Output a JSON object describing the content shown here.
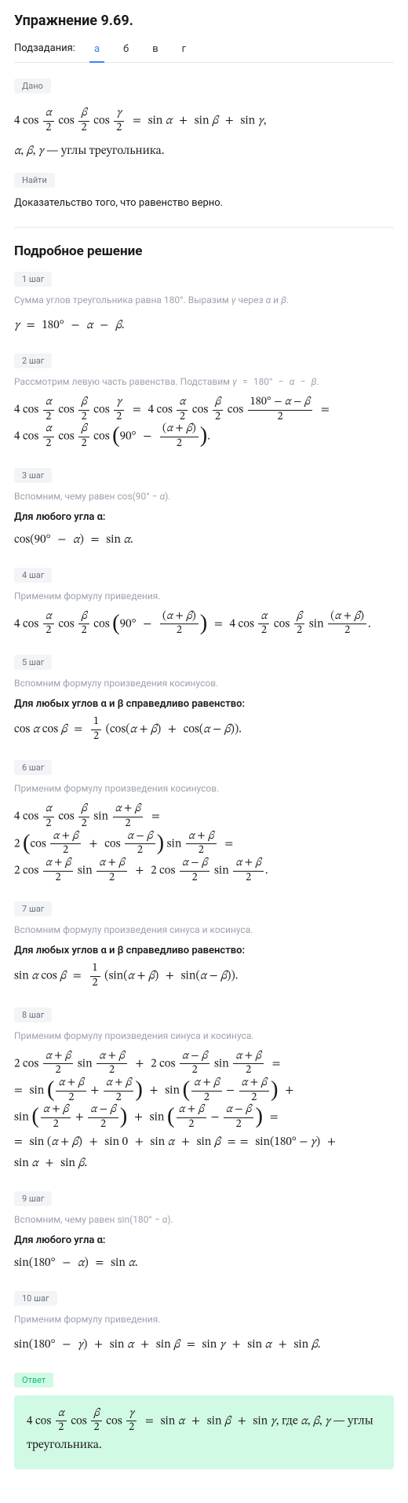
{
  "title": "Упражнение 9.69.",
  "subtasks": {
    "label": "Подзадания:",
    "tabs": [
      "а",
      "б",
      "в",
      "г"
    ],
    "active": 0
  },
  "given": {
    "tag": "Дано",
    "formula_html": "4 cos <span class='fr'><span class='n it'>α</span><span class='d'>2</span></span> cos <span class='fr'><span class='n it'>β</span><span class='d'>2</span></span> cos <span class='fr'><span class='n it'>γ</span><span class='d'>2</span></span> <span class='sp'></span>=<span class='sp'></span> sin <span class='it'>α</span> <span class='sp'></span>+<span class='sp'></span> sin <span class='it'>β</span> <span class='sp'></span>+<span class='sp'></span> sin <span class='it'>γ</span>,",
    "note_html": "<span class='it'>α</span>, <span class='it'>β</span>, <span class='it'>γ</span> — углы треугольника."
  },
  "find": {
    "tag": "Найти",
    "text": "Доказательство того, что равенство верно."
  },
  "solution_title": "Подробное решение",
  "steps": [
    {
      "tag": "1 шаг",
      "gray_html": "Сумма углов треугольника равна 180°. Выразим <span class='it'>γ</span> через <span class='it'>α</span> и <span class='it'>β</span>.",
      "math_html": "<span class='it'>γ</span> <span class='sp'></span>=<span class='sp'></span> 180° <span class='sp'></span>−<span class='sp'></span> <span class='it'>α</span> <span class='sp'></span>−<span class='sp'></span> <span class='it'>β</span>."
    },
    {
      "tag": "2 шаг",
      "gray_html": "Рассмотрим левую часть равенства. Подставим <span class='it'>γ</span> <span class='sp'></span>=<span class='sp'></span> 180° <span class='sp'></span>−<span class='sp'></span> <span class='it'>α</span> <span class='sp'></span>−<span class='sp'></span> <span class='it'>β</span>.",
      "math_html": "4 cos <span class='fr'><span class='n it'>α</span><span class='d'>2</span></span> cos <span class='fr'><span class='n it'>β</span><span class='d'>2</span></span> cos <span class='fr'><span class='n it'>γ</span><span class='d'>2</span></span> <span class='sp'></span>=<span class='sp'></span> 4 cos <span class='fr'><span class='n it'>α</span><span class='d'>2</span></span> cos <span class='fr'><span class='n it'>β</span><span class='d'>2</span></span> cos <span class='fr'><span class='n'>180° − <span class='it'>α</span> − <span class='it'>β</span></span><span class='d'>2</span></span> <span class='sp'></span>=<br>4 cos <span class='fr'><span class='n it'>α</span><span class='d'>2</span></span> cos <span class='fr'><span class='n it'>β</span><span class='d'>2</span></span> cos <span class='paren-l'>(</span>90° <span class='sp'></span>−<span class='sp'></span> <span class='fr'><span class='n'>(<span class='it'>α</span> + <span class='it'>β</span>)</span><span class='d'>2</span></span><span class='paren-r'>)</span>."
    },
    {
      "tag": "3 шаг",
      "gray_html": "Вспомним, чему равен cos(90° − <span class='it'>α</span>).",
      "bold": "Для любого угла α:",
      "math_html": "cos(90° <span class='sp'></span>−<span class='sp'></span> <span class='it'>α</span>) <span class='sp'></span>=<span class='sp'></span> sin <span class='it'>α</span>."
    },
    {
      "tag": "4 шаг",
      "gray_html": "Применим формулу приведения.",
      "math_html": "4 cos <span class='fr'><span class='n it'>α</span><span class='d'>2</span></span> cos <span class='fr'><span class='n it'>β</span><span class='d'>2</span></span> cos <span class='paren-l'>(</span>90° <span class='sp'></span>−<span class='sp'></span> <span class='fr'><span class='n'>(<span class='it'>α</span> + <span class='it'>β</span>)</span><span class='d'>2</span></span><span class='paren-r'>)</span> <span class='sp'></span>=<span class='sp'></span> 4 cos <span class='fr'><span class='n it'>α</span><span class='d'>2</span></span> cos <span class='fr'><span class='n it'>β</span><span class='d'>2</span></span> sin <span class='fr'><span class='n'>(<span class='it'>α</span> + <span class='it'>β</span>)</span><span class='d'>2</span></span>."
    },
    {
      "tag": "5 шаг",
      "gray_html": "Вспомним формулу произведения косинусов.",
      "bold": "Для любых углов α и β справедливо равенство:",
      "math_html": "cos <span class='it'>α</span> cos <span class='it'>β</span> <span class='sp'></span>=<span class='sp'></span> <span class='fr'><span class='n'>1</span><span class='d'>2</span></span> (cos(<span class='it'>α</span> + <span class='it'>β</span>) <span class='sp'></span>+<span class='sp'></span> cos(<span class='it'>α</span> − <span class='it'>β</span>))."
    },
    {
      "tag": "6 шаг",
      "gray_html": "Применим формулу произведения косинусов.",
      "math_html": "4 cos <span class='fr'><span class='n it'>α</span><span class='d'>2</span></span> cos <span class='fr'><span class='n it'>β</span><span class='d'>2</span></span> sin <span class='fr'><span class='n'><span class='it'>α</span> + <span class='it'>β</span></span><span class='d'>2</span></span> <span class='sp'></span>=<br>2 <span class='paren-l'>(</span>cos <span class='fr'><span class='n'><span class='it'>α</span> + <span class='it'>β</span></span><span class='d'>2</span></span> <span class='sp'></span>+<span class='sp'></span> cos <span class='fr'><span class='n'><span class='it'>α</span> − <span class='it'>β</span></span><span class='d'>2</span></span><span class='paren-r'>)</span> sin <span class='fr'><span class='n'><span class='it'>α</span> + <span class='it'>β</span></span><span class='d'>2</span></span> <span class='sp'></span>=<br>2 cos <span class='fr'><span class='n'><span class='it'>α</span> + <span class='it'>β</span></span><span class='d'>2</span></span> sin <span class='fr'><span class='n'><span class='it'>α</span> + <span class='it'>β</span></span><span class='d'>2</span></span> <span class='sp'></span>+<span class='sp'></span> 2 cos <span class='fr'><span class='n'><span class='it'>α</span> − <span class='it'>β</span></span><span class='d'>2</span></span> sin <span class='fr'><span class='n'><span class='it'>α</span> + <span class='it'>β</span></span><span class='d'>2</span></span>."
    },
    {
      "tag": "7 шаг",
      "gray_html": "Вспомним формулу произведения синуса и косинуса.",
      "bold": "Для любых углов α и β справедливо равенство:",
      "math_html": "sin <span class='it'>α</span> cos <span class='it'>β</span> <span class='sp'></span>=<span class='sp'></span> <span class='fr'><span class='n'>1</span><span class='d'>2</span></span> (sin(<span class='it'>α</span> + <span class='it'>β</span>) <span class='sp'></span>+<span class='sp'></span> sin(<span class='it'>α</span> − <span class='it'>β</span>))."
    },
    {
      "tag": "8 шаг",
      "gray_html": "Применим формулу произведения синуса и косинуса.",
      "math_html": "2 cos <span class='fr'><span class='n'><span class='it'>α</span> + <span class='it'>β</span></span><span class='d'>2</span></span> sin <span class='fr'><span class='n'><span class='it'>α</span> + <span class='it'>β</span></span><span class='d'>2</span></span> <span class='sp'></span>+<span class='sp'></span> 2 cos <span class='fr'><span class='n'><span class='it'>α</span> − <span class='it'>β</span></span><span class='d'>2</span></span> sin <span class='fr'><span class='n'><span class='it'>α</span> + <span class='it'>β</span></span><span class='d'>2</span></span> <span class='sp'></span>=<br>= <span class='sp'></span>sin <span class='paren-l'>(</span><span class='fr'><span class='n'><span class='it'>α</span> + <span class='it'>β</span></span><span class='d'>2</span></span> + <span class='fr'><span class='n'><span class='it'>α</span> + <span class='it'>β</span></span><span class='d'>2</span></span><span class='paren-r'>)</span> <span class='sp'></span>+<span class='sp'></span> sin <span class='paren-l'>(</span><span class='fr'><span class='n'><span class='it'>α</span> + <span class='it'>β</span></span><span class='d'>2</span></span> − <span class='fr'><span class='n'><span class='it'>α</span> + <span class='it'>β</span></span><span class='d'>2</span></span><span class='paren-r'>)</span> <span class='sp'></span>+<br>sin <span class='paren-l'>(</span><span class='fr'><span class='n'><span class='it'>α</span> + <span class='it'>β</span></span><span class='d'>2</span></span> + <span class='fr'><span class='n'><span class='it'>α</span> − <span class='it'>β</span></span><span class='d'>2</span></span><span class='paren-r'>)</span> <span class='sp'></span>+<span class='sp'></span> sin <span class='paren-l'>(</span><span class='fr'><span class='n'><span class='it'>α</span> + <span class='it'>β</span></span><span class='d'>2</span></span> − <span class='fr'><span class='n'><span class='it'>α</span> − <span class='it'>β</span></span><span class='d'>2</span></span><span class='paren-r'>)</span> <span class='sp'></span>=<br>= <span class='sp'></span>sin (<span class='it'>α</span> + <span class='it'>β</span>) <span class='sp'></span>+<span class='sp'></span> sin 0 <span class='sp'></span>+<span class='sp'></span> sin <span class='it'>α</span> <span class='sp'></span>+<span class='sp'></span> sin <span class='it'>β</span> <span class='sp'></span>=<span class='sp'></span>=<span class='sp'></span> sin(180° − <span class='it'>γ</span>) <span class='sp'></span>+<br>sin <span class='it'>α</span> <span class='sp'></span>+<span class='sp'></span> sin <span class='it'>β</span>."
    },
    {
      "tag": "9 шаг",
      "gray_html": "Вспомним, чему равен sin(180° − <span class='it'>α</span>).",
      "bold": "Для любого угла α:",
      "math_html": "sin(180° <span class='sp'></span>−<span class='sp'></span> <span class='it'>α</span>) <span class='sp'></span>=<span class='sp'></span> sin <span class='it'>α</span>."
    },
    {
      "tag": "10 шаг",
      "gray_html": "Применим формулу приведения.",
      "math_html": "sin(180° <span class='sp'></span>−<span class='sp'></span> <span class='it'>γ</span>) <span class='sp'></span>+<span class='sp'></span> sin <span class='it'>α</span> <span class='sp'></span>+<span class='sp'></span> sin <span class='it'>β</span> <span class='sp'></span>=<span class='sp'></span> sin <span class='it'>γ</span> <span class='sp'></span>+<span class='sp'></span> sin <span class='it'>α</span> <span class='sp'></span>+<span class='sp'></span> sin <span class='it'>β</span>."
    }
  ],
  "answer": {
    "tag": "Ответ",
    "html": "4 cos <span class='fr'><span class='n it'>α</span><span class='d'>2</span></span> cos <span class='fr'><span class='n it'>β</span><span class='d'>2</span></span> cos <span class='fr'><span class='n it'>γ</span><span class='d'>2</span></span> <span class='sp'></span>=<span class='sp'></span> sin <span class='it'>α</span> <span class='sp'></span>+<span class='sp'></span> sin <span class='it'>β</span> <span class='sp'></span>+<span class='sp'></span> sin <span class='it'>γ</span>, где <span class='it'>α</span>, <span class='it'>β</span>, <span class='it'>γ</span> — углы треугольника."
  },
  "colors": {
    "accent": "#3b82f6",
    "tag_bg": "#f3f4f6",
    "tag_fg": "#6b7280",
    "answer_bg": "#d1fae5",
    "answer_fg": "#10b981",
    "gray": "#9ca3af",
    "border": "#e8e8e8"
  }
}
